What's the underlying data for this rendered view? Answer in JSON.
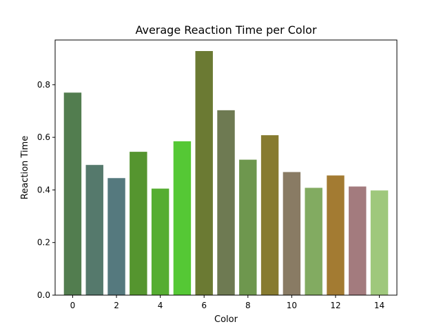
{
  "chart_data": {
    "type": "bar",
    "title": "Average Reaction Time per Color",
    "xlabel": "Color",
    "ylabel": "Reaction Time",
    "x": [
      0,
      1,
      2,
      3,
      4,
      5,
      6,
      7,
      8,
      9,
      10,
      11,
      12,
      13,
      14
    ],
    "values": [
      0.77,
      0.495,
      0.445,
      0.545,
      0.405,
      0.585,
      0.928,
      0.703,
      0.515,
      0.608,
      0.468,
      0.408,
      0.455,
      0.413,
      0.398
    ],
    "colors": [
      "#527d4f",
      "#55796c",
      "#55797e",
      "#55952f",
      "#55ad31",
      "#55c835",
      "#6b7a33",
      "#6e7a52",
      "#6e974e",
      "#877b30",
      "#897b64",
      "#82ab61",
      "#a37b32",
      "#a37b7e",
      "#9fc87c"
    ],
    "xlim": [
      -0.8,
      14.8
    ],
    "ylim": [
      0,
      0.97
    ],
    "xticks": [
      0,
      2,
      4,
      6,
      8,
      10,
      12,
      14
    ],
    "yticks": [
      0.0,
      0.2,
      0.4,
      0.6,
      0.8
    ],
    "ytick_labels": [
      "0.0",
      "0.2",
      "0.4",
      "0.6",
      "0.8"
    ],
    "grid": false,
    "legend": "none"
  }
}
